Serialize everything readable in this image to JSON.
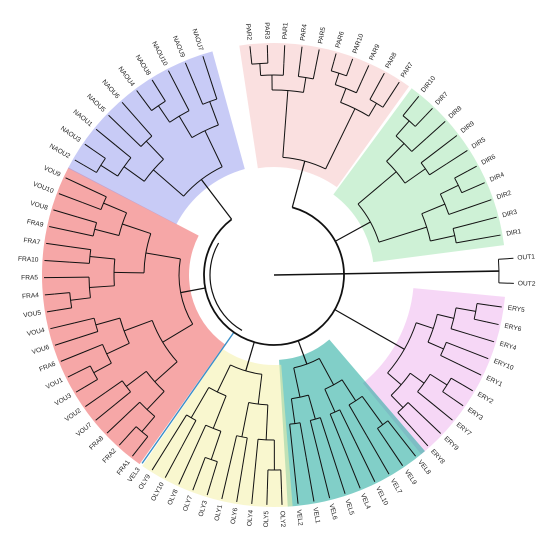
{
  "tree": {
    "colors": {
      "branch": "#111111",
      "label": "#222222",
      "blue_stroke": "#3a8fc8",
      "NAOU": "#9aa0ee",
      "PAR": "#f6c7c7",
      "DIR": "#a6e6b4",
      "ERY": "#efb6ef",
      "VEL": "#1aa89a",
      "OLY": "#f4f0a8",
      "RED": "#ee5e5e"
    },
    "groups": [
      {
        "id": "PAR",
        "color_key": "PAR",
        "labels": [
          "PAR2",
          "PAR3",
          "PAR1",
          "PAR4",
          "PAR5",
          "PAR6",
          "PAR10",
          "PAR9",
          "PAR8",
          "PAR7"
        ]
      },
      {
        "id": "DIR",
        "color_key": "DIR",
        "labels": [
          "DIR10",
          "DIR7",
          "DIR8",
          "DIR9",
          "DIR5",
          "DIR6",
          "DIR4",
          "DIR2",
          "DIR3",
          "DIR1"
        ]
      },
      {
        "id": "OUT",
        "color_key": "",
        "labels": [
          "OUT1",
          "OUT2"
        ]
      },
      {
        "id": "ERY",
        "color_key": "ERY",
        "labels": [
          "ERY5",
          "ERY6",
          "ERY4",
          "ERY10",
          "ERY1",
          "ERY2",
          "ERY3",
          "ERY7",
          "ERY9",
          "ERY8"
        ]
      },
      {
        "id": "VEL",
        "color_key": "VEL",
        "labels": [
          "VEL8",
          "VEL9",
          "VEL7",
          "VEL10",
          "VEL4",
          "VEL5",
          "VEL6",
          "VEL1",
          "VEL2"
        ]
      },
      {
        "id": "OLY",
        "color_key": "OLY",
        "labels": [
          "OLY2",
          "OLY5",
          "OLY4",
          "OLY6",
          "OLY1",
          "OLY3",
          "OLY7",
          "OLY8",
          "OLY10",
          "OLY9"
        ]
      },
      {
        "id": "VEL3",
        "color_key": "",
        "labels": [
          "VEL3"
        ]
      },
      {
        "id": "RED",
        "color_key": "RED",
        "labels": [
          "FRA1",
          "FRA2",
          "FRA8",
          "VOU7",
          "VOU2",
          "VOU3",
          "VOU1",
          "FRA6",
          "VOU6",
          "VOU4",
          "VOU5",
          "FRA4",
          "FRA5",
          "FRA10",
          "FRA7",
          "FRA9",
          "VOU8",
          "VOU10",
          "VOU9"
        ]
      },
      {
        "id": "NAOU",
        "color_key": "NAOU",
        "labels": [
          "NAOU2",
          "NAOU3",
          "NAOU1",
          "NAOU5",
          "NAOU6",
          "NAOU4",
          "NAOU8",
          "NAOU10",
          "NAOU9",
          "NAOU7"
        ]
      }
    ]
  }
}
